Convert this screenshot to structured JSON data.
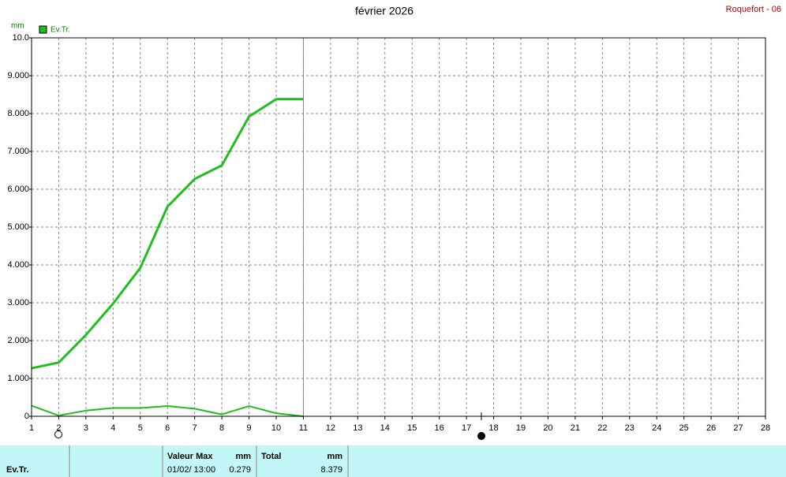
{
  "chart_data": {
    "type": "line",
    "title": "février 2026",
    "station": "Roquefort - 06",
    "y_unit": "mm",
    "legend": {
      "label": "Ev.Tr.",
      "color": "#1fbf1f"
    },
    "x": [
      1,
      2,
      3,
      4,
      5,
      6,
      7,
      8,
      9,
      10,
      11
    ],
    "xlim": [
      1,
      28
    ],
    "xticks": [
      1,
      2,
      3,
      4,
      5,
      6,
      7,
      8,
      9,
      10,
      11,
      12,
      13,
      14,
      15,
      16,
      17,
      18,
      19,
      20,
      21,
      22,
      23,
      24,
      25,
      26,
      27,
      28
    ],
    "ylim": [
      0,
      10
    ],
    "yticks": [
      0,
      {
        "value": 1,
        "label": "1.000"
      },
      {
        "value": 2,
        "label": "2.000"
      },
      {
        "value": 3,
        "label": "3.000"
      },
      {
        "value": 4,
        "label": "4.000"
      },
      {
        "value": 5,
        "label": "5.000"
      },
      {
        "value": 6,
        "label": "6.000"
      },
      {
        "value": 7,
        "label": "7.000"
      },
      {
        "value": 8,
        "label": "8.000"
      },
      {
        "value": 9,
        "label": "9.000"
      },
      {
        "value": 10,
        "label": "10.0"
      }
    ],
    "grid": true,
    "series": [
      {
        "color": "#1fbf1f",
        "values": [
          1.27,
          1.42,
          2.15,
          2.98,
          3.92,
          5.54,
          6.27,
          6.63,
          7.92,
          8.38,
          8.379
        ]
      },
      {
        "color": "#1fbf1f",
        "values": [
          0.279,
          0.02,
          0.15,
          0.22,
          0.22,
          0.27,
          0.2,
          0.05,
          0.27,
          0.08,
          0
        ]
      }
    ]
  },
  "table": {
    "row_label": "Ev.Tr.",
    "max_header": "Valeur Max",
    "max_unit": "mm",
    "total_header": "Total",
    "total_unit": "mm",
    "max_date": "01/02/ 13:00",
    "max_value": "0.279",
    "total": "8.379"
  }
}
